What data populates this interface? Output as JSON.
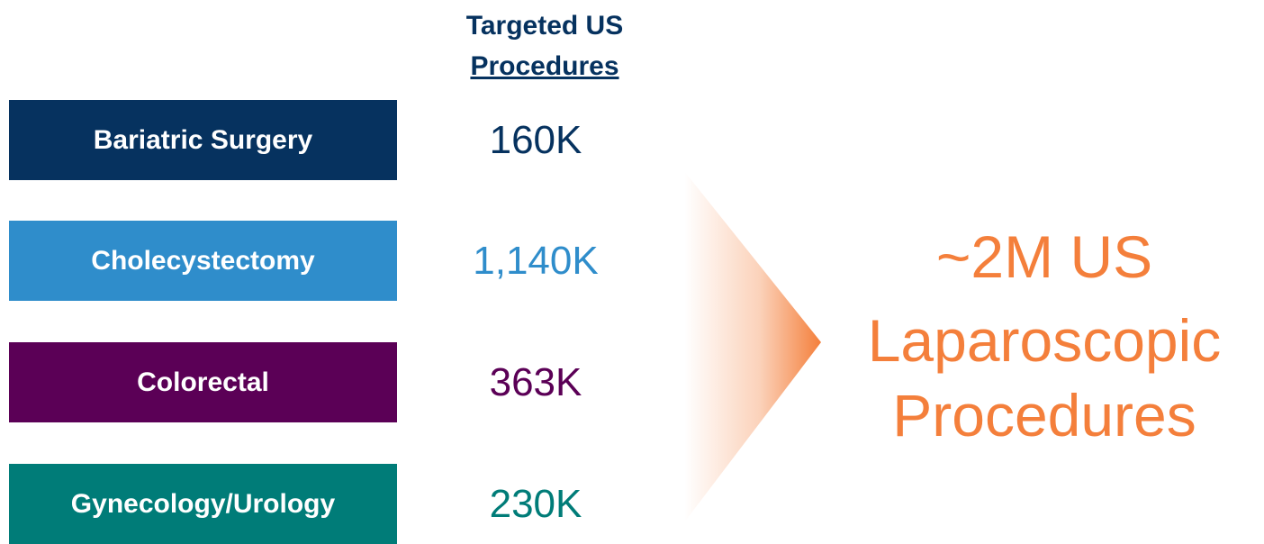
{
  "header": {
    "line1": "Targeted US",
    "line2": "Procedures"
  },
  "rows": [
    {
      "label": "Bariatric Surgery",
      "value": "160K",
      "color": "#06325f"
    },
    {
      "label": "Cholecystectomy",
      "value": "1,140K",
      "color": "#2f8dcb"
    },
    {
      "label": "Colorectal",
      "value": "363K",
      "color": "#5b0056"
    },
    {
      "label": "Gynecology/Urology",
      "value": "230K",
      "color": "#007c78"
    }
  ],
  "summary": {
    "line1": "~2M US",
    "line2": "Laparoscopic",
    "line3": "Procedures",
    "color": "#f47f3b"
  }
}
